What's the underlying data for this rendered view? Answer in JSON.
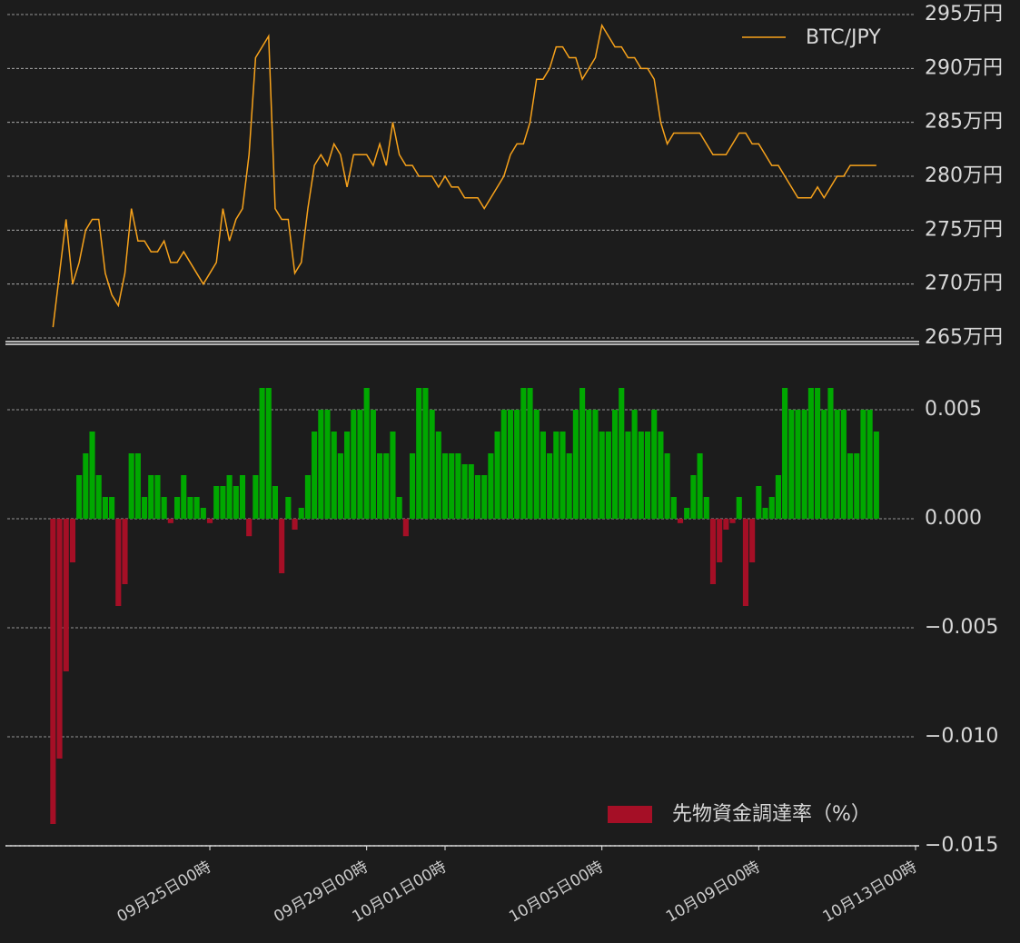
{
  "chart_data": [
    {
      "type": "line",
      "legend": "upper right",
      "grid": true,
      "x": [
        "09月21日00時",
        "09月21日04時",
        "09月21日08時",
        "09月21日12時",
        "09月21日16時",
        "09月21日20時",
        "09月22日00時",
        "09月22日04時",
        "09月22日08時",
        "09月22日12時",
        "09月22日16時",
        "09月22日20時",
        "09月23日00時",
        "09月23日04時",
        "09月23日08時",
        "09月23日12時",
        "09月23日16時",
        "09月23日20時",
        "09月24日00時",
        "09月24日04時",
        "09月24日08時",
        "09月24日12時",
        "09月24日16時",
        "09月24日20時",
        "09月25日00時",
        "09月25日04時",
        "09月25日08時",
        "09月25日12時",
        "09月25日16時",
        "09月25日20時",
        "09月26日00時",
        "09月26日04時",
        "09月26日08時",
        "09月26日12時",
        "09月26日16時",
        "09月26日20時",
        "09月27日00時",
        "09月27日04時",
        "09月27日08時",
        "09月27日12時",
        "09月27日16時",
        "09月27日20時",
        "09月28日00時",
        "09月28日04時",
        "09月28日08時",
        "09月28日12時",
        "09月28日16時",
        "09月28日20時",
        "09月29日00時",
        "09月29日04時",
        "09月29日08時",
        "09月29日12時",
        "09月29日16時",
        "09月29日20時",
        "09月30日00時",
        "09月30日04時",
        "09月30日08時",
        "09月30日12時",
        "09月30日16時",
        "09月30日20時",
        "10月01日00時",
        "10月01日04時",
        "10月01日08時",
        "10月01日12時",
        "10月01日16時",
        "10月01日20時",
        "10月02日00時",
        "10月02日04時",
        "10月02日08時",
        "10月02日12時",
        "10月02日16時",
        "10月02日20時",
        "10月03日00時",
        "10月03日04時",
        "10月03日08時",
        "10月03日12時",
        "10月03日16時",
        "10月03日20時",
        "10月04日00時",
        "10月04日04時",
        "10月04日08時",
        "10月04日12時",
        "10月04日16時",
        "10月04日20時",
        "10月05日00時",
        "10月05日04時",
        "10月05日08時",
        "10月05日12時",
        "10月05日16時",
        "10月05日20時",
        "10月06日00時",
        "10月06日04時",
        "10月06日08時",
        "10月06日12時",
        "10月06日16時",
        "10月06日20時",
        "10月07日00時",
        "10月07日04時",
        "10月07日08時",
        "10月07日12時",
        "10月07日16時",
        "10月07日20時",
        "10月08日00時",
        "10月08日04時",
        "10月08日08時",
        "10月08日12時",
        "10月08日16時",
        "10月08日20時",
        "10月09日00時",
        "10月09日04時",
        "10月09日08時",
        "10月09日12時",
        "10月09日16時",
        "10月09日20時",
        "10月10日00時",
        "10月10日04時",
        "10月10日08時",
        "10月10日12時",
        "10月10日16時",
        "10月10日20時",
        "10月11日00時",
        "10月11日04時",
        "10月11日08時",
        "10月11日12時",
        "10月11日16時",
        "10月11日20時",
        "10月12日00時"
      ],
      "series": [
        {
          "name": "BTC/JPY",
          "color": "#f7a21b",
          "values": [
            266,
            271,
            276,
            270,
            272,
            275,
            276,
            276,
            271,
            269,
            268,
            271,
            277,
            274,
            274,
            273,
            273,
            274,
            272,
            272,
            273,
            272,
            271,
            270,
            271,
            272,
            277,
            274,
            276,
            277,
            282,
            291,
            292,
            293,
            277,
            276,
            276,
            271,
            272,
            277,
            281,
            282,
            281,
            283,
            282,
            279,
            282,
            282,
            282,
            281,
            283,
            281,
            285,
            282,
            281,
            281,
            280,
            280,
            280,
            279,
            280,
            279,
            279,
            278,
            278,
            278,
            277,
            278,
            279,
            280,
            282,
            283,
            283,
            285,
            289,
            289,
            290,
            292,
            292,
            291,
            291,
            289,
            290,
            291,
            294,
            293,
            292,
            292,
            291,
            291,
            290,
            290,
            289,
            285,
            283,
            284,
            284,
            284,
            284,
            284,
            283,
            282,
            282,
            282,
            283,
            284,
            284,
            283,
            283,
            282,
            281,
            281,
            280,
            279,
            278,
            278,
            278,
            279,
            278,
            279,
            280,
            280,
            281,
            281,
            281,
            281,
            281
          ]
        }
      ],
      "xlim": [
        "09月19日20時",
        "10月13日00時"
      ],
      "ylim": [
        265,
        295
      ],
      "yticks": [
        {
          "value": 265,
          "label": "265万円"
        },
        {
          "value": 270,
          "label": "270万円"
        },
        {
          "value": 275,
          "label": "275万円"
        },
        {
          "value": 280,
          "label": "280万円"
        },
        {
          "value": 285,
          "label": "285万円"
        },
        {
          "value": 290,
          "label": "290万円"
        },
        {
          "value": 295,
          "label": "295万円"
        }
      ]
    },
    {
      "type": "bar",
      "legend": "lower right",
      "grid": true,
      "x": [
        "09月21日00時",
        "09月21日04時",
        "09月21日08時",
        "09月21日12時",
        "09月21日16時",
        "09月21日20時",
        "09月22日00時",
        "09月22日04時",
        "09月22日08時",
        "09月22日12時",
        "09月22日16時",
        "09月22日20時",
        "09月23日00時",
        "09月23日04時",
        "09月23日08時",
        "09月23日12時",
        "09月23日16時",
        "09月23日20時",
        "09月24日00時",
        "09月24日04時",
        "09月24日08時",
        "09月24日12時",
        "09月24日16時",
        "09月24日20時",
        "09月25日00時",
        "09月25日04時",
        "09月25日08時",
        "09月25日12時",
        "09月25日16時",
        "09月25日20時",
        "09月26日00時",
        "09月26日04時",
        "09月26日08時",
        "09月26日12時",
        "09月26日16時",
        "09月26日20時",
        "09月27日00時",
        "09月27日04時",
        "09月27日08時",
        "09月27日12時",
        "09月27日16時",
        "09月27日20時",
        "09月28日00時",
        "09月28日04時",
        "09月28日08時",
        "09月28日12時",
        "09月28日16時",
        "09月28日20時",
        "09月29日00時",
        "09月29日04時",
        "09月29日08時",
        "09月29日12時",
        "09月29日16時",
        "09月29日20時",
        "09月30日00時",
        "09月30日04時",
        "09月30日08時",
        "09月30日12時",
        "09月30日16時",
        "09月30日20時",
        "10月01日00時",
        "10月01日04時",
        "10月01日08時",
        "10月01日12時",
        "10月01日16時",
        "10月01日20時",
        "10月02日00時",
        "10月02日04時",
        "10月02日08時",
        "10月02日12時",
        "10月02日16時",
        "10月02日20時",
        "10月03日00時",
        "10月03日04時",
        "10月03日08時",
        "10月03日12時",
        "10月03日16時",
        "10月03日20時",
        "10月04日00時",
        "10月04日04時",
        "10月04日08時",
        "10月04日12時",
        "10月04日16時",
        "10月04日20時",
        "10月05日00時",
        "10月05日04時",
        "10月05日08時",
        "10月05日12時",
        "10月05日16時",
        "10月05日20時",
        "10月06日00時",
        "10月06日04時",
        "10月06日08時",
        "10月06日12時",
        "10月06日16時",
        "10月06日20時",
        "10月07日00時",
        "10月07日04時",
        "10月07日08時",
        "10月07日12時",
        "10月07日16時",
        "10月07日20時",
        "10月08日00時",
        "10月08日04時",
        "10月08日08時",
        "10月08日12時",
        "10月08日16時",
        "10月08日20時",
        "10月09日00時",
        "10月09日04時",
        "10月09日08時",
        "10月09日12時",
        "10月09日16時",
        "10月09日20時",
        "10月10日00時",
        "10月10日04時",
        "10月10日08時",
        "10月10日12時",
        "10月10日16時",
        "10月10日20時",
        "10月11日00時",
        "10月11日04時",
        "10月11日08時",
        "10月11日12時",
        "10月11日16時",
        "10月11日20時",
        "10月12日00時"
      ],
      "series": [
        {
          "name": "先物資金調達率（%）",
          "color": "#a50f26",
          "positive_color": "#00a800",
          "values": [
            -0.014,
            -0.011,
            -0.007,
            -0.002,
            0.002,
            0.003,
            0.004,
            0.002,
            0.001,
            0.001,
            -0.004,
            -0.003,
            0.003,
            0.003,
            0.001,
            0.002,
            0.002,
            0.001,
            -0.0002,
            0.001,
            0.002,
            0.001,
            0.001,
            0.0005,
            -0.0002,
            0.0015,
            0.0015,
            0.002,
            0.0015,
            0.002,
            -0.0008,
            0.002,
            0.006,
            0.006,
            0.0015,
            -0.0025,
            0.001,
            -0.0005,
            0.0005,
            0.002,
            0.004,
            0.005,
            0.005,
            0.004,
            0.003,
            0.004,
            0.005,
            0.005,
            0.006,
            0.005,
            0.003,
            0.003,
            0.004,
            0.001,
            -0.0008,
            0.003,
            0.006,
            0.006,
            0.005,
            0.004,
            0.003,
            0.003,
            0.003,
            0.0025,
            0.0025,
            0.002,
            0.002,
            0.003,
            0.004,
            0.005,
            0.005,
            0.005,
            0.006,
            0.006,
            0.005,
            0.004,
            0.003,
            0.004,
            0.004,
            0.003,
            0.005,
            0.006,
            0.005,
            0.005,
            0.004,
            0.004,
            0.005,
            0.006,
            0.004,
            0.005,
            0.004,
            0.004,
            0.005,
            0.004,
            0.003,
            0.001,
            -0.0002,
            0.0005,
            0.002,
            0.003,
            0.001,
            -0.003,
            -0.002,
            -0.0005,
            -0.0002,
            0.001,
            -0.004,
            -0.002,
            0.0015,
            0.0005,
            0.001,
            0.002,
            0.006,
            0.005,
            0.005,
            0.005,
            0.006,
            0.006,
            0.005,
            0.006,
            0.005,
            0.005,
            0.003,
            0.003,
            0.005,
            0.005,
            0.004
          ]
        }
      ],
      "xlim": [
        "09月19日20時",
        "10月13日00時"
      ],
      "xticks": [
        "09月25日00時",
        "09月29日00時",
        "10月01日00時",
        "10月05日00時",
        "10月09日00時",
        "10月13日00時"
      ],
      "ylim": [
        -0.015,
        0.008
      ],
      "yticks": [
        {
          "value": -0.015,
          "label": "−0.015"
        },
        {
          "value": -0.01,
          "label": "−0.010"
        },
        {
          "value": -0.005,
          "label": "−0.005"
        },
        {
          "value": 0,
          "label": "0.000"
        },
        0.005
      ]
    }
  ]
}
